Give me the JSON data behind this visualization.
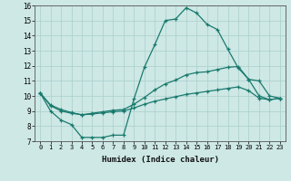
{
  "title": "",
  "xlabel": "Humidex (Indice chaleur)",
  "background_color": "#cde8e5",
  "grid_color": "#aacfcc",
  "line_color": "#1a7a6e",
  "xlim": [
    -0.5,
    23.5
  ],
  "ylim": [
    7,
    16
  ],
  "xticks": [
    0,
    1,
    2,
    3,
    4,
    5,
    6,
    7,
    8,
    9,
    10,
    11,
    12,
    13,
    14,
    15,
    16,
    17,
    18,
    19,
    20,
    21,
    22,
    23
  ],
  "yticks": [
    7,
    8,
    9,
    10,
    11,
    12,
    13,
    14,
    15,
    16
  ],
  "series": [
    [
      10.2,
      9.0,
      8.4,
      8.1,
      7.25,
      7.25,
      7.25,
      7.4,
      7.4,
      9.8,
      11.9,
      13.4,
      15.0,
      15.1,
      15.85,
      15.5,
      14.75,
      14.4,
      13.1,
      11.85,
      11.1,
      11.0,
      10.0,
      9.85
    ],
    [
      10.2,
      9.4,
      9.1,
      8.9,
      8.75,
      8.85,
      8.95,
      9.05,
      9.1,
      9.45,
      9.9,
      10.4,
      10.8,
      11.05,
      11.4,
      11.55,
      11.6,
      11.75,
      11.9,
      11.95,
      11.1,
      10.0,
      9.75,
      9.85
    ],
    [
      10.2,
      9.35,
      9.0,
      8.85,
      8.75,
      8.8,
      8.88,
      8.95,
      9.0,
      9.2,
      9.45,
      9.65,
      9.8,
      9.95,
      10.1,
      10.2,
      10.3,
      10.4,
      10.5,
      10.6,
      10.35,
      9.85,
      9.75,
      9.85
    ]
  ]
}
